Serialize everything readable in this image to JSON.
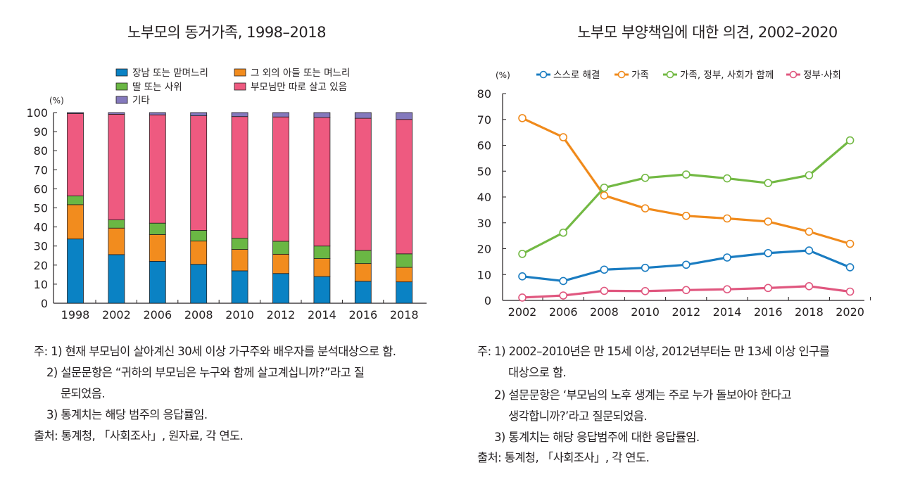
{
  "chart_data": [
    {
      "type": "bar",
      "stacked": true,
      "title": "노부모의 동거가족, 1998–2018",
      "ylabel": "(%)",
      "ylim": [
        0,
        100
      ],
      "yticks": [
        "0",
        "10",
        "20",
        "30",
        "40",
        "50",
        "60",
        "70",
        "80",
        "90",
        "100"
      ],
      "categories": [
        "1998",
        "2002",
        "2006",
        "2008",
        "2010",
        "2012",
        "2014",
        "2016",
        "2018"
      ],
      "legend_position": "top",
      "grid": false,
      "series": [
        {
          "name": "장남 또는 맏며느리",
          "color": "#0a82c4",
          "values": [
            33.7,
            25.5,
            22.0,
            20.4,
            17.0,
            15.6,
            14.0,
            11.5,
            11.2
          ]
        },
        {
          "name": "그 외의 아들 또는 며느리",
          "color": "#f28c1e",
          "values": [
            18.0,
            13.9,
            14.0,
            12.2,
            11.2,
            10.1,
            9.4,
            9.3,
            7.6
          ]
        },
        {
          "name": "딸 또는 사위",
          "color": "#6ab744",
          "values": [
            4.6,
            4.3,
            6.0,
            5.6,
            5.9,
            6.8,
            6.6,
            6.9,
            7.1
          ]
        },
        {
          "name": "부모님만 따로 살고 있음",
          "color": "#ee5a80",
          "values": [
            43.2,
            55.4,
            56.8,
            60.1,
            63.8,
            65.2,
            67.4,
            69.3,
            70.5
          ]
        },
        {
          "name": "기타",
          "color": "#8479bd",
          "values": [
            0.5,
            0.9,
            1.2,
            1.7,
            2.1,
            2.3,
            2.6,
            3.0,
            3.6
          ]
        }
      ]
    },
    {
      "type": "line",
      "title": "노부모 부양책임에 대한 의견, 2002–2020",
      "ylabel": "(%)",
      "ylim": [
        0,
        80
      ],
      "yticks": [
        "0",
        "10",
        "20",
        "30",
        "40",
        "50",
        "60",
        "70",
        "80"
      ],
      "categories": [
        "2002",
        "2006",
        "2008",
        "2010",
        "2012",
        "2014",
        "2016",
        "2018",
        "2020"
      ],
      "legend_position": "top",
      "grid": false,
      "series": [
        {
          "name": "스스로 해결",
          "color": "#1a7cc1",
          "values": [
            9.3,
            7.5,
            11.9,
            12.6,
            13.8,
            16.6,
            18.3,
            19.3,
            12.8
          ]
        },
        {
          "name": "가족",
          "color": "#f08a1b",
          "values": [
            70.5,
            63.1,
            40.6,
            35.6,
            32.7,
            31.7,
            30.5,
            26.6,
            21.9
          ]
        },
        {
          "name": "가족, 정부, 사회가 함께",
          "color": "#73b944",
          "values": [
            18.0,
            26.2,
            43.6,
            47.4,
            48.7,
            47.2,
            45.4,
            48.4,
            61.9
          ]
        },
        {
          "name": "정부·사회",
          "color": "#e0577f",
          "values": [
            1.1,
            1.9,
            3.7,
            3.6,
            4.0,
            4.3,
            4.8,
            5.5,
            3.4
          ]
        }
      ]
    }
  ],
  "notes_left": [
    "주: 1) 현재 부모님이 살아계신 30세 이상 가구주와 배우자를 분석대상으로 함.",
    "2) 설문문항은 “귀하의 부모님은 누구와 함께 살고계십니까?”라고 질",
    "문되었음.",
    "3) 통계치는 해당 범주의 응답률임.",
    "출처: 통계청, 「사회조사」, 원자료, 각 연도."
  ],
  "notes_right": [
    "주: 1) 2002–2010년은 만 15세 이상, 2012년부터는 만 13세 이상 인구를",
    "대상으로 함.",
    "2) 설문문항은 ‘부모님의 노후 생계는 주로 누가 돌보아야 한다고",
    "생각합니까?’라고 질문되었음.",
    "3) 통계치는 해당 응답범주에 대한 응답률임.",
    "출처: 통계청, 「사회조사」, 각 연도."
  ]
}
